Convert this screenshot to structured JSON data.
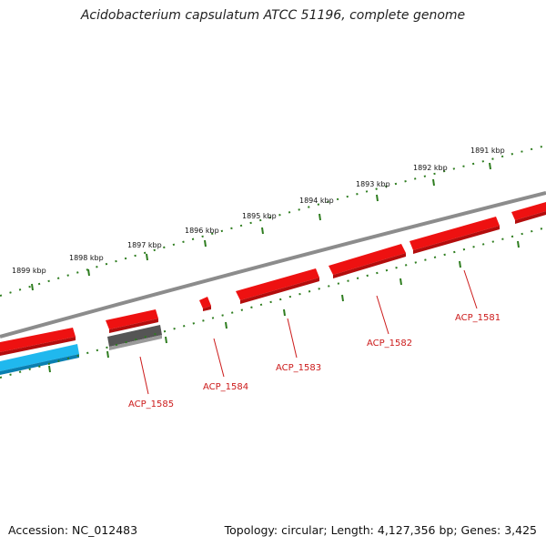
{
  "title": "Acidobacterium capsulatum ATCC 51196, complete genome",
  "footer": {
    "accession": "Accession: NC_012483",
    "summary": "Topology: circular; Length: 4,127,356 bp; Genes: 3,425"
  },
  "scale_labels": [
    "1891 kbp",
    "1892 kbp",
    "1893 kbp",
    "1894 kbp",
    "1895 kbp",
    "1896 kbp",
    "1897 kbp",
    "1898 kbp",
    "1899 kbp"
  ],
  "gene_labels": [
    "ACP_1581",
    "ACP_1582",
    "ACP_1583",
    "ACP_1584",
    "ACP_1585"
  ],
  "colors": {
    "backbone": "#8c8c8c",
    "forward_gene": "#ee1111",
    "reverse_gene": "#20b8ee",
    "pseudo_gene": "#555555",
    "tick": "#2e7d1f",
    "label": "#cc1a1a"
  }
}
